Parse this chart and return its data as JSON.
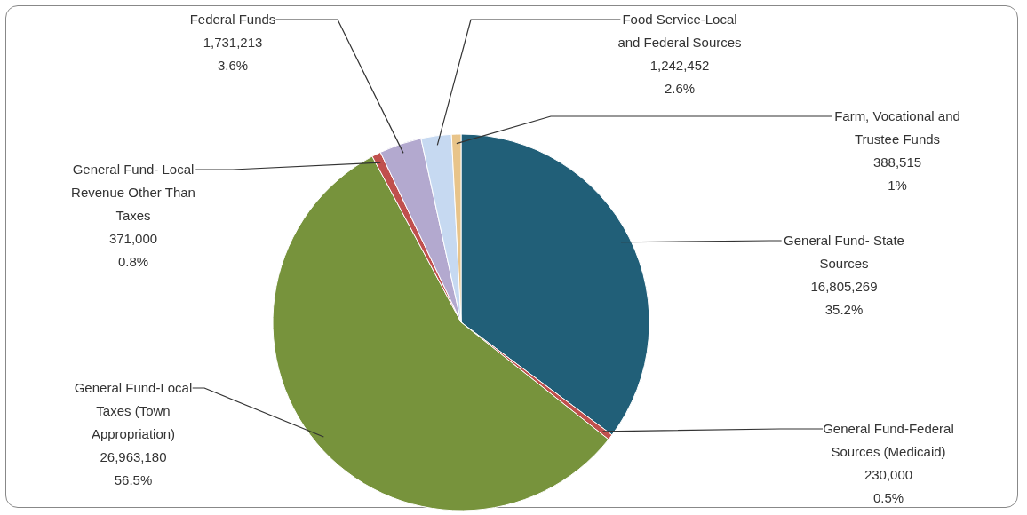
{
  "chart_data": {
    "type": "pie",
    "categories": [
      "General Fund- State Sources",
      "General Fund-Federal Sources (Medicaid)",
      "General Fund-Local Taxes (Town Appropriation)",
      "General Fund- Local Revenue Other Than Taxes",
      "Federal Funds",
      "Food Service-Local and Federal Sources",
      "Farm, Vocational and Trustee Funds"
    ],
    "values": [
      16805269,
      230000,
      26963180,
      371000,
      1731213,
      1242452,
      388515
    ],
    "colors": [
      "#215f78",
      "#c0504d",
      "#77933c",
      "#c0504d",
      "#b3a9cf",
      "#c6d9f1",
      "#e8c48a"
    ],
    "value_labels": [
      "16,805,269\n35.2%",
      "230,000\n0.5%",
      "26,963,180\n56.5%",
      "371,000\n0.8%",
      "1,731,213\n3.6%",
      "1,242,452\n2.6%",
      "388,515\n1%"
    ]
  }
}
